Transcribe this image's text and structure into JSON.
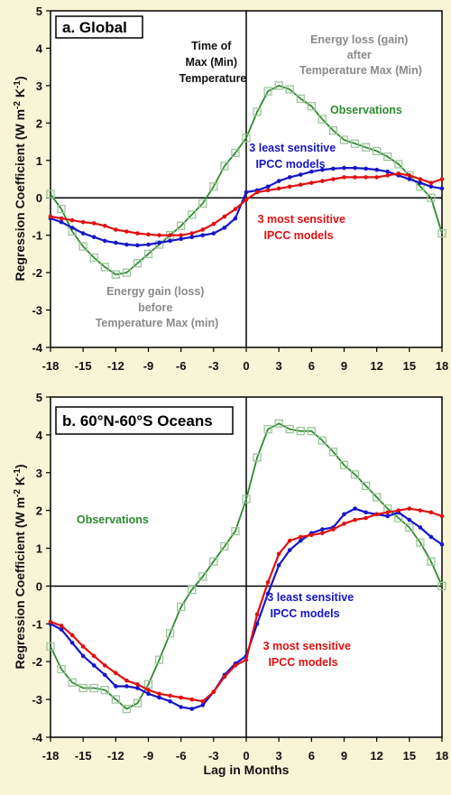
{
  "chart_data": [
    {
      "type": "line",
      "title": "a. Global",
      "xlabel": "",
      "ylabel": "Regression Coefficient (W m-2 K-1)",
      "ylabel_parts": {
        "main": "Regression Coefficient (W m",
        "exp1": "-2",
        "mid": " K",
        "exp2": "-1",
        "end": ")"
      },
      "xlim": [
        -18,
        18
      ],
      "ylim": [
        -4,
        5
      ],
      "x_ticks": [
        -18,
        -15,
        -12,
        -9,
        -6,
        -3,
        0,
        3,
        6,
        9,
        12,
        15,
        18
      ],
      "y_ticks": [
        -4,
        -3,
        -2,
        -1,
        0,
        1,
        2,
        3,
        4,
        5
      ],
      "colors": {
        "observations": "#2e8b2e",
        "least": "#1515c8",
        "most": "#e01010",
        "gray": "#8a8a8a"
      },
      "annotations": {
        "time_of_max": [
          "Time of",
          "Max (Min)",
          "Temperature"
        ],
        "energy_loss": [
          "Energy loss (gain)",
          "after",
          "Temperature Max (Min)"
        ],
        "energy_gain": [
          "Energy gain (loss)",
          "before",
          "Temperature Max (min)"
        ],
        "observations": "Observations",
        "least": [
          "3 least sensitive",
          "IPCC models"
        ],
        "most": [
          "3 most sensitive",
          "IPCC models"
        ]
      },
      "series": [
        {
          "name": "Observations",
          "key": "observations",
          "marker": "square",
          "x": [
            -18,
            -17,
            -16,
            -15,
            -14,
            -13,
            -12,
            -11,
            -10,
            -9,
            -8,
            -7,
            -6,
            -5,
            -4,
            -3,
            -2,
            -1,
            0,
            1,
            2,
            3,
            4,
            5,
            6,
            7,
            8,
            9,
            10,
            11,
            12,
            13,
            14,
            15,
            16,
            17,
            18
          ],
          "y": [
            0.1,
            -0.3,
            -0.9,
            -1.3,
            -1.6,
            -1.85,
            -2.05,
            -2.0,
            -1.75,
            -1.5,
            -1.25,
            -1.0,
            -0.75,
            -0.45,
            -0.15,
            0.3,
            0.85,
            1.2,
            1.6,
            2.3,
            2.85,
            3.0,
            2.9,
            2.65,
            2.45,
            2.1,
            1.8,
            1.55,
            1.45,
            1.35,
            1.25,
            1.1,
            0.9,
            0.6,
            0.3,
            0.0,
            -0.95
          ]
        },
        {
          "name": "3 least sensitive IPCC models",
          "key": "least",
          "marker": "dot",
          "x": [
            -18,
            -17,
            -16,
            -15,
            -14,
            -13,
            -12,
            -11,
            -10,
            -9,
            -8,
            -7,
            -6,
            -5,
            -4,
            -3,
            -2,
            -1,
            0,
            1,
            2,
            3,
            4,
            5,
            6,
            7,
            8,
            9,
            10,
            11,
            12,
            13,
            14,
            15,
            16,
            17,
            18
          ],
          "y": [
            -0.55,
            -0.65,
            -0.8,
            -0.95,
            -1.05,
            -1.15,
            -1.2,
            -1.25,
            -1.27,
            -1.25,
            -1.2,
            -1.15,
            -1.1,
            -1.05,
            -1.0,
            -0.95,
            -0.8,
            -0.55,
            0.15,
            0.2,
            0.3,
            0.45,
            0.55,
            0.62,
            0.7,
            0.75,
            0.78,
            0.8,
            0.8,
            0.78,
            0.75,
            0.7,
            0.6,
            0.5,
            0.4,
            0.3,
            0.25
          ]
        },
        {
          "name": "3 most sensitive IPCC models",
          "key": "most",
          "marker": "dot",
          "x": [
            -18,
            -17,
            -16,
            -15,
            -14,
            -13,
            -12,
            -11,
            -10,
            -9,
            -8,
            -7,
            -6,
            -5,
            -4,
            -3,
            -2,
            -1,
            0,
            1,
            2,
            3,
            4,
            5,
            6,
            7,
            8,
            9,
            10,
            11,
            12,
            13,
            14,
            15,
            16,
            17,
            18
          ],
          "y": [
            -0.5,
            -0.55,
            -0.6,
            -0.65,
            -0.68,
            -0.75,
            -0.85,
            -0.9,
            -0.95,
            -0.98,
            -1.0,
            -1.0,
            -1.0,
            -0.95,
            -0.85,
            -0.7,
            -0.5,
            -0.3,
            -0.05,
            0.15,
            0.2,
            0.25,
            0.3,
            0.35,
            0.4,
            0.45,
            0.5,
            0.55,
            0.55,
            0.55,
            0.55,
            0.6,
            0.65,
            0.6,
            0.5,
            0.4,
            0.5
          ]
        }
      ]
    },
    {
      "type": "line",
      "title": "b. 60°N-60°S Oceans",
      "xlabel": "Lag in Months",
      "ylabel": "Regression Coefficient (W m-2 K-1)",
      "ylabel_parts": {
        "main": "Regression Coefficient (W m",
        "exp1": "-2",
        "mid": " K",
        "exp2": "-1",
        "end": ")"
      },
      "xlim": [
        -18,
        18
      ],
      "ylim": [
        -4,
        5
      ],
      "x_ticks": [
        -18,
        -15,
        -12,
        -9,
        -6,
        -3,
        0,
        3,
        6,
        9,
        12,
        15,
        18
      ],
      "y_ticks": [
        -4,
        -3,
        -2,
        -1,
        0,
        1,
        2,
        3,
        4,
        5
      ],
      "colors": {
        "observations": "#2e8b2e",
        "least": "#1515c8",
        "most": "#e01010"
      },
      "annotations": {
        "observations": "Observations",
        "least": [
          "3 least sensitive",
          "IPCC models"
        ],
        "most": [
          "3 most sensitive",
          "IPCC models"
        ]
      },
      "series": [
        {
          "name": "Observations",
          "key": "observations",
          "marker": "square",
          "x": [
            -18,
            -17,
            -16,
            -15,
            -14,
            -13,
            -12,
            -11,
            -10,
            -9,
            -8,
            -7,
            -6,
            -5,
            -4,
            -3,
            -2,
            -1,
            0,
            1,
            2,
            3,
            4,
            5,
            6,
            7,
            8,
            9,
            10,
            11,
            12,
            13,
            14,
            15,
            16,
            17,
            18
          ],
          "y": [
            -1.6,
            -2.2,
            -2.55,
            -2.7,
            -2.7,
            -2.75,
            -3.0,
            -3.25,
            -3.1,
            -2.6,
            -1.95,
            -1.25,
            -0.55,
            -0.1,
            0.25,
            0.65,
            1.05,
            1.45,
            2.3,
            3.4,
            4.15,
            4.3,
            4.15,
            4.1,
            4.1,
            3.85,
            3.55,
            3.2,
            2.95,
            2.65,
            2.35,
            2.05,
            1.8,
            1.55,
            1.15,
            0.65,
            0.0
          ]
        },
        {
          "name": "3 least sensitive IPCC models",
          "key": "least",
          "marker": "dot",
          "x": [
            -18,
            -17,
            -16,
            -15,
            -14,
            -13,
            -12,
            -11,
            -10,
            -9,
            -8,
            -7,
            -6,
            -5,
            -4,
            -3,
            -2,
            -1,
            0,
            1,
            2,
            3,
            4,
            5,
            6,
            7,
            8,
            9,
            10,
            11,
            12,
            13,
            14,
            15,
            16,
            17,
            18
          ],
          "y": [
            -1.0,
            -1.15,
            -1.5,
            -1.85,
            -2.1,
            -2.35,
            -2.65,
            -2.65,
            -2.7,
            -2.85,
            -2.95,
            -3.05,
            -3.2,
            -3.25,
            -3.15,
            -2.8,
            -2.35,
            -2.05,
            -1.85,
            -1.0,
            -0.2,
            0.55,
            0.95,
            1.2,
            1.4,
            1.5,
            1.55,
            1.9,
            2.05,
            1.95,
            1.9,
            1.85,
            1.95,
            1.75,
            1.55,
            1.3,
            1.1
          ]
        },
        {
          "name": "3 most sensitive IPCC models",
          "key": "most",
          "marker": "dot",
          "x": [
            -18,
            -17,
            -16,
            -15,
            -14,
            -13,
            -12,
            -11,
            -10,
            -9,
            -8,
            -7,
            -6,
            -5,
            -4,
            -3,
            -2,
            -1,
            0,
            1,
            2,
            3,
            4,
            5,
            6,
            7,
            8,
            9,
            10,
            11,
            12,
            13,
            14,
            15,
            16,
            17,
            18
          ],
          "y": [
            -0.95,
            -1.05,
            -1.3,
            -1.6,
            -1.85,
            -2.1,
            -2.3,
            -2.5,
            -2.6,
            -2.75,
            -2.85,
            -2.9,
            -2.95,
            -3.0,
            -3.05,
            -2.8,
            -2.4,
            -2.1,
            -1.95,
            -0.75,
            0.1,
            0.85,
            1.2,
            1.3,
            1.35,
            1.4,
            1.5,
            1.65,
            1.75,
            1.8,
            1.9,
            1.95,
            2.0,
            2.05,
            2.0,
            1.95,
            1.85
          ]
        }
      ]
    }
  ]
}
